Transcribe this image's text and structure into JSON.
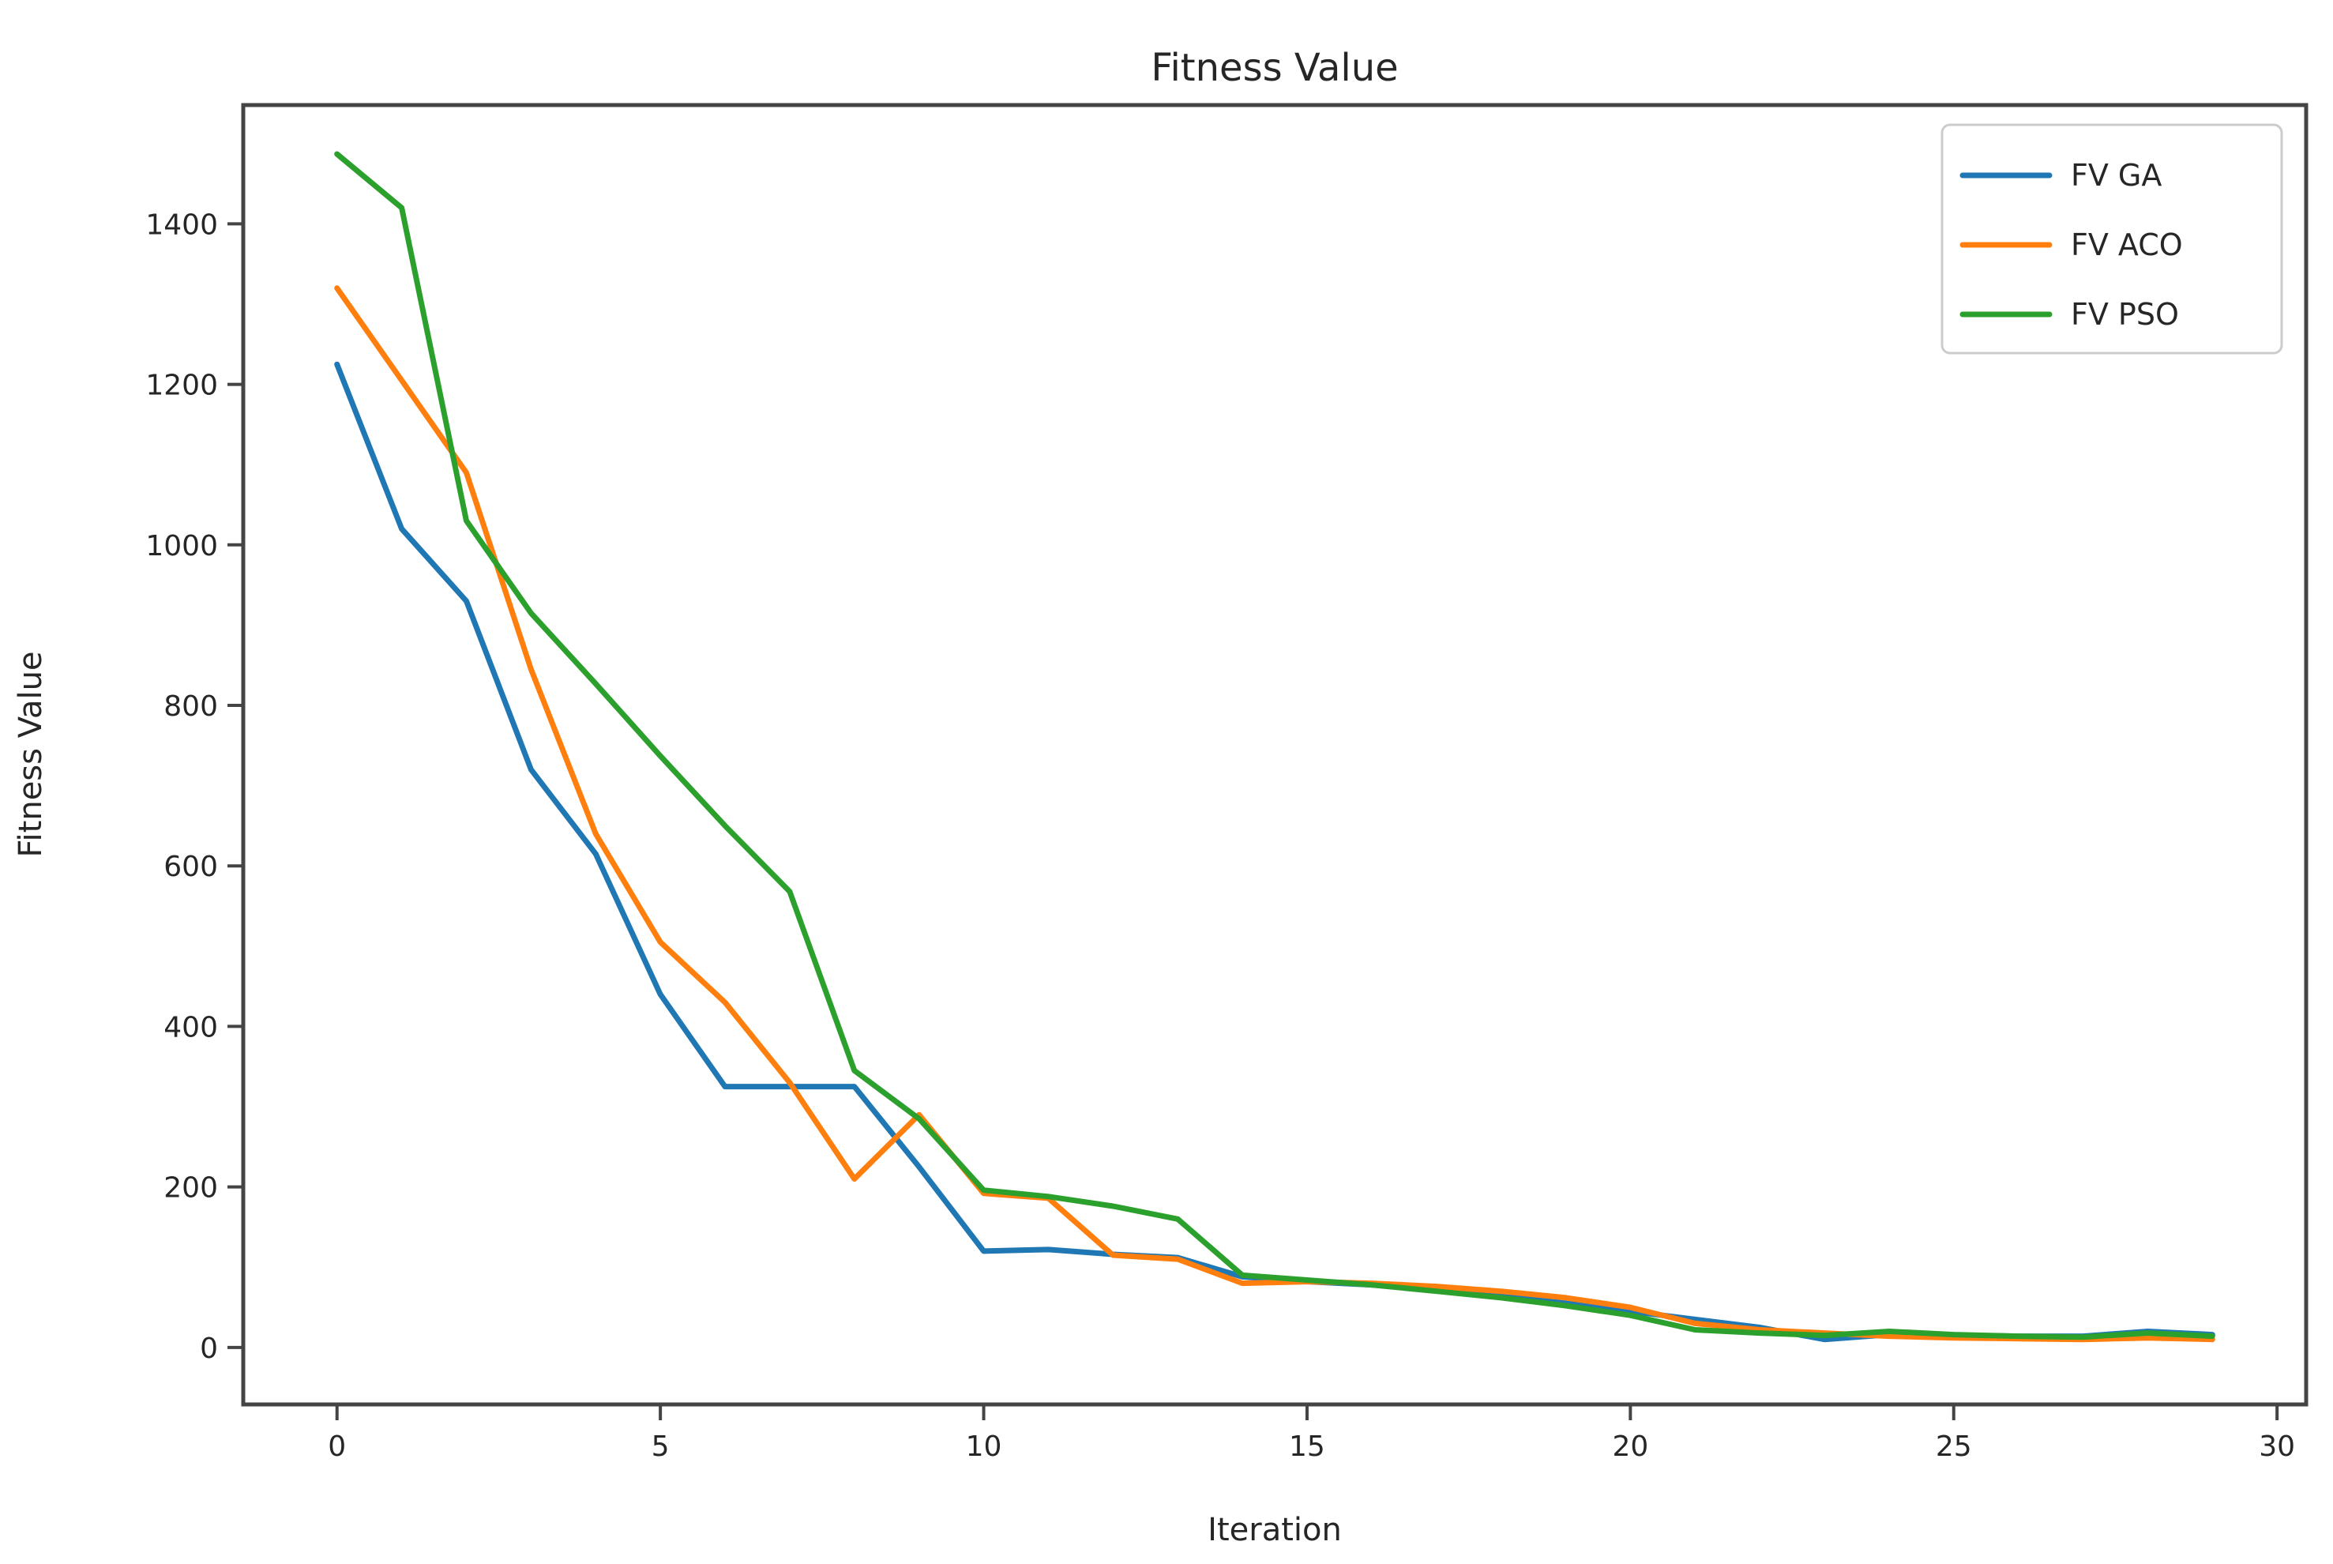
{
  "figure": {
    "title": "Fitness Value",
    "xlabel": "Iteration",
    "ylabel": "Fitness Value"
  },
  "style": {
    "background_color": "#ffffff",
    "spine_color": "#444444",
    "tick_color": "#444444",
    "text_color": "#262626",
    "legend_border_color": "#cccccc",
    "legend_background": "#ffffff"
  },
  "legend": {
    "entries": [
      {
        "label": "FV GA",
        "color": "#1f77b4"
      },
      {
        "label": "FV ACO",
        "color": "#ff7f0e"
      },
      {
        "label": "FV PSO",
        "color": "#2ca02c"
      }
    ],
    "position": "upper right"
  },
  "chart_data": {
    "type": "line",
    "title": "Fitness Value",
    "xlabel": "Iteration",
    "ylabel": "Fitness Value",
    "x": [
      0,
      1,
      2,
      3,
      4,
      5,
      6,
      7,
      8,
      9,
      10,
      11,
      12,
      13,
      14,
      15,
      16,
      17,
      18,
      19,
      20,
      21,
      22,
      23,
      24,
      25,
      26,
      27,
      28,
      29
    ],
    "x_ticks": [
      0,
      5,
      10,
      15,
      20,
      25,
      30
    ],
    "y_ticks": [
      0,
      200,
      400,
      600,
      800,
      1000,
      1200,
      1400
    ],
    "xlim": [
      -1.45,
      30.45
    ],
    "ylim": [
      -71,
      1548
    ],
    "grid": false,
    "legend_position": "upper right",
    "series": [
      {
        "name": "FV GA",
        "color": "#1f77b4",
        "values": [
          1225,
          1020,
          930,
          720,
          615,
          440,
          325,
          325,
          325,
          225,
          120,
          122,
          116,
          112,
          88,
          82,
          78,
          72,
          65,
          55,
          45,
          35,
          25,
          10,
          16,
          15,
          14,
          14,
          20,
          16
        ]
      },
      {
        "name": "FV ACO",
        "color": "#ff7f0e",
        "values": [
          1320,
          1205,
          1090,
          845,
          640,
          505,
          430,
          330,
          210,
          290,
          192,
          186,
          115,
          110,
          80,
          82,
          80,
          76,
          70,
          62,
          50,
          30,
          22,
          18,
          14,
          12,
          11,
          10,
          12,
          10
        ]
      },
      {
        "name": "FV PSO",
        "color": "#2ca02c",
        "values": [
          1487,
          1420,
          1030,
          915,
          827,
          737,
          650,
          568,
          345,
          285,
          196,
          188,
          176,
          160,
          90,
          84,
          78,
          70,
          62,
          52,
          40,
          22,
          18,
          15,
          20,
          16,
          14,
          13,
          18,
          14
        ]
      }
    ]
  }
}
